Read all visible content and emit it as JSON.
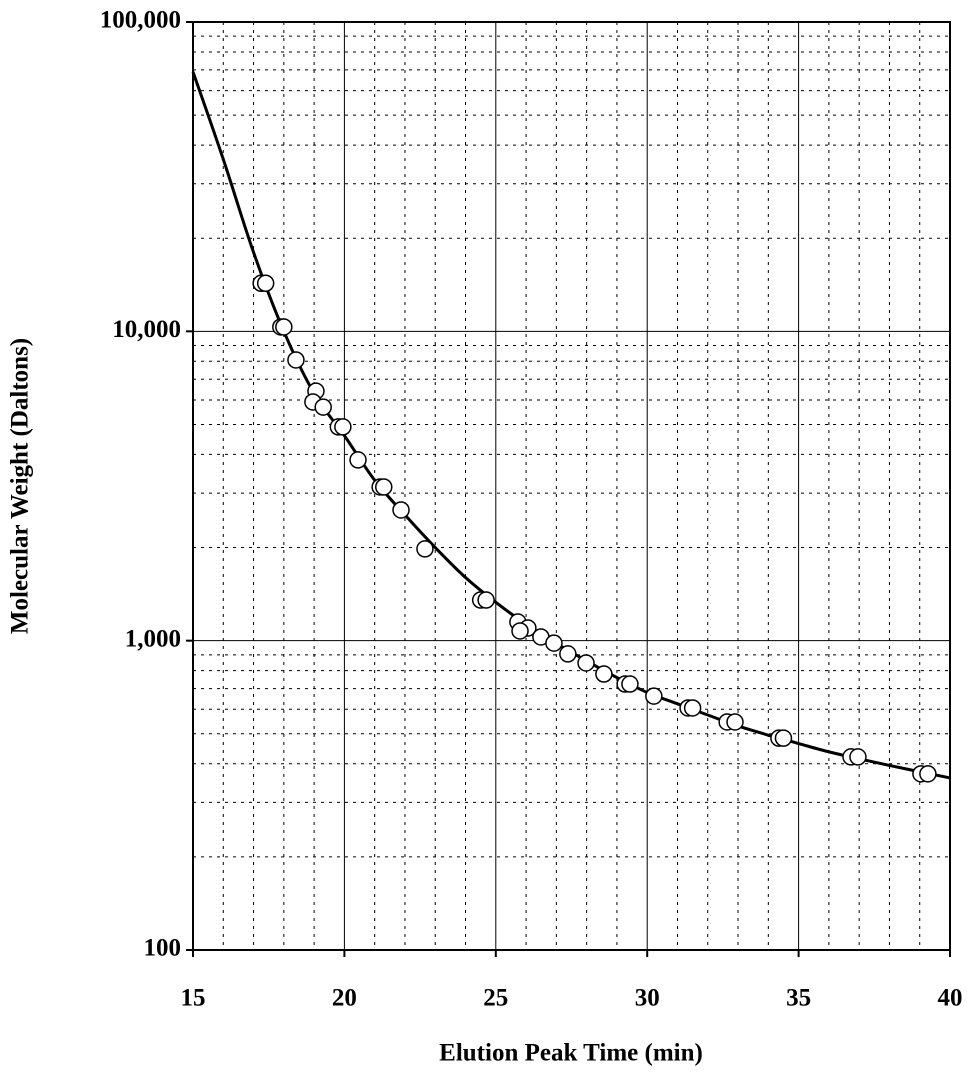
{
  "chart_data": {
    "type": "scatter",
    "xlabel": "Elution Peak Time (min)",
    "ylabel": "Molecular Weight (Daltons)",
    "xlim": [
      15,
      40
    ],
    "xticks": [
      15,
      20,
      25,
      30,
      35,
      40
    ],
    "ylim": [
      100,
      100000
    ],
    "yticks": [
      100,
      {
        "value": 1000,
        "label": "1,000"
      },
      {
        "value": 10000,
        "label": "10,000"
      },
      {
        "value": 100000,
        "label": "100,000"
      }
    ],
    "log_y": true,
    "grid": true,
    "minor_grid": true,
    "series": [
      {
        "kind": "line",
        "color": "#000000",
        "x": [
          15,
          16,
          17,
          18,
          19,
          20,
          21,
          22,
          23,
          24,
          25,
          26,
          27,
          28,
          29,
          30,
          31,
          32,
          33,
          34,
          35,
          36,
          37,
          38,
          39,
          40
        ],
        "values": [
          69000,
          36000,
          18000,
          10000,
          6300,
          4600,
          3300,
          2550,
          2000,
          1600,
          1330,
          1130,
          980,
          860,
          760,
          680,
          625,
          575,
          530,
          495,
          465,
          437,
          415,
          395,
          377,
          360
        ]
      },
      {
        "kind": "points",
        "color": "#ffffff",
        "x": [
          17.25,
          17.4,
          17.9,
          18.0,
          18.4,
          19.06,
          18.96,
          19.3,
          19.8,
          19.95,
          20.45,
          21.18,
          21.3,
          21.87,
          22.66,
          24.5,
          24.68,
          25.73,
          26.06,
          25.8,
          26.49,
          26.92,
          27.38,
          27.98,
          28.57,
          29.27,
          29.43,
          30.22,
          31.35,
          31.5,
          32.64,
          32.9,
          34.35,
          34.5,
          36.73,
          36.96,
          39.04,
          39.27
        ],
        "values": [
          14300,
          14300,
          10330,
          10330,
          8080,
          6410,
          5910,
          5690,
          4910,
          4910,
          3840,
          3140,
          3140,
          2645,
          1980,
          1353,
          1353,
          1149,
          1099,
          1075,
          1028,
          982,
          906,
          847,
          780,
          724,
          724,
          662,
          606,
          606,
          546,
          546,
          484,
          484,
          421,
          421,
          371,
          371
        ]
      }
    ]
  }
}
